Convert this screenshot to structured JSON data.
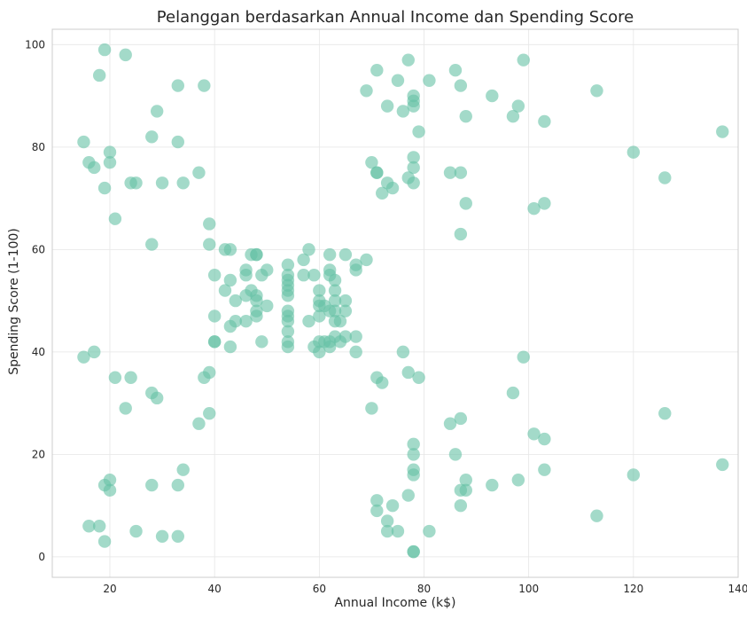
{
  "chart_data": {
    "type": "scatter",
    "title": "Pelanggan berdasarkan Annual Income dan Spending Score",
    "xlabel": "Annual Income (k$)",
    "ylabel": "Spending Score (1-100)",
    "xlim": [
      9,
      140
    ],
    "ylim": [
      -4,
      103
    ],
    "xticks": [
      20,
      40,
      60,
      80,
      100,
      120,
      140
    ],
    "yticks": [
      0,
      20,
      40,
      60,
      80,
      100
    ],
    "grid": true,
    "marker_color": "#66c2a5",
    "x": [
      15,
      15,
      16,
      16,
      17,
      17,
      18,
      18,
      19,
      19,
      19,
      19,
      20,
      20,
      20,
      20,
      21,
      21,
      23,
      23,
      24,
      24,
      25,
      25,
      28,
      28,
      28,
      28,
      29,
      29,
      30,
      30,
      33,
      33,
      33,
      33,
      34,
      34,
      37,
      37,
      38,
      38,
      39,
      39,
      39,
      39,
      40,
      40,
      40,
      40,
      42,
      42,
      43,
      43,
      43,
      43,
      44,
      44,
      46,
      46,
      46,
      46,
      47,
      47,
      48,
      48,
      48,
      48,
      48,
      48,
      49,
      49,
      50,
      50,
      54,
      54,
      54,
      54,
      54,
      54,
      54,
      54,
      54,
      54,
      54,
      54,
      57,
      57,
      58,
      58,
      59,
      59,
      60,
      60,
      60,
      60,
      60,
      60,
      61,
      61,
      62,
      62,
      62,
      62,
      62,
      62,
      63,
      63,
      63,
      63,
      63,
      63,
      64,
      64,
      65,
      65,
      65,
      65,
      67,
      67,
      67,
      67,
      69,
      69,
      70,
      70,
      71,
      71,
      71,
      71,
      71,
      71,
      72,
      72,
      73,
      73,
      73,
      73,
      74,
      74,
      75,
      75,
      76,
      76,
      77,
      77,
      77,
      77,
      78,
      78,
      78,
      78,
      78,
      78,
      78,
      78,
      78,
      78,
      78,
      78,
      79,
      79,
      81,
      81,
      85,
      85,
      86,
      86,
      87,
      87,
      87,
      87,
      87,
      87,
      88,
      88,
      88,
      88,
      93,
      93,
      97,
      97,
      98,
      98,
      99,
      99,
      101,
      101,
      103,
      103,
      103,
      103,
      113,
      113,
      120,
      120,
      126,
      126,
      137,
      137
    ],
    "y": [
      39,
      81,
      6,
      77,
      40,
      76,
      6,
      94,
      3,
      72,
      14,
      99,
      15,
      77,
      13,
      79,
      35,
      66,
      29,
      98,
      35,
      73,
      5,
      73,
      14,
      82,
      32,
      61,
      31,
      87,
      4,
      73,
      4,
      92,
      14,
      81,
      17,
      73,
      26,
      75,
      35,
      92,
      36,
      61,
      28,
      65,
      55,
      47,
      42,
      42,
      52,
      60,
      54,
      60,
      45,
      41,
      50,
      46,
      51,
      46,
      56,
      55,
      52,
      59,
      51,
      59,
      50,
      48,
      59,
      47,
      55,
      42,
      49,
      56,
      47,
      54,
      53,
      48,
      52,
      42,
      51,
      55,
      41,
      44,
      57,
      46,
      58,
      55,
      60,
      46,
      55,
      41,
      49,
      40,
      42,
      52,
      47,
      50,
      42,
      49,
      41,
      48,
      59,
      55,
      56,
      42,
      50,
      46,
      43,
      48,
      52,
      54,
      42,
      46,
      48,
      50,
      43,
      59,
      43,
      57,
      56,
      40,
      58,
      91,
      29,
      77,
      35,
      95,
      11,
      75,
      9,
      75,
      34,
      71,
      5,
      88,
      7,
      73,
      10,
      72,
      5,
      93,
      40,
      87,
      12,
      97,
      36,
      74,
      22,
      90,
      17,
      88,
      20,
      76,
      16,
      89,
      1,
      78,
      1,
      73,
      35,
      83,
      5,
      93,
      26,
      75,
      20,
      95,
      27,
      63,
      13,
      75,
      10,
      92,
      13,
      86,
      15,
      69,
      14,
      90,
      32,
      86,
      15,
      88,
      39,
      97,
      24,
      68,
      17,
      85,
      23,
      69,
      8,
      91,
      16,
      79,
      28,
      74,
      18,
      83
    ]
  }
}
